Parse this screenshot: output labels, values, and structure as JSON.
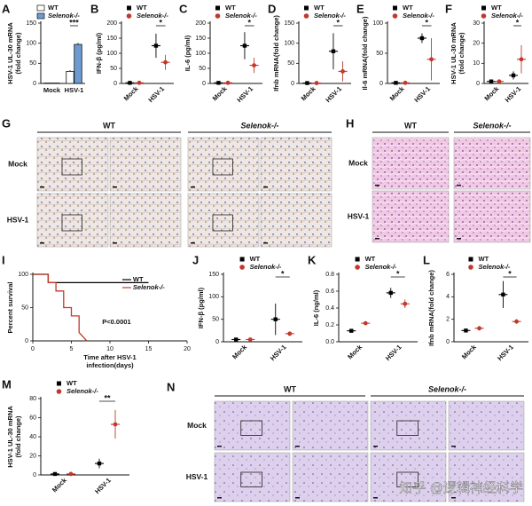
{
  "chart_data": [
    {
      "label": "A",
      "type": "bar",
      "ylabel": [
        "HSV-1 UL-30 mRNA",
        "(fold change)"
      ],
      "categories": [
        "Mock",
        "HSV-1"
      ],
      "series": [
        {
          "name": "WT",
          "color": "#ffffff",
          "values": [
            1,
            30
          ],
          "errors": [
            0.5,
            3
          ]
        },
        {
          "name": "Selenok-/-",
          "color": "#6d9bd1",
          "values": [
            1,
            97
          ],
          "errors": [
            0.5,
            4
          ]
        }
      ],
      "ylim": [
        0,
        150
      ],
      "yticks": [
        0,
        50,
        100,
        150
      ],
      "significance": "***"
    },
    {
      "label": "B",
      "type": "dot",
      "ylabel": [
        "IFN-β (pg/ml)"
      ],
      "categories": [
        "Mock",
        "HSV-1"
      ],
      "series": [
        {
          "name": "WT",
          "color": "#000000",
          "values": [
            2,
            125
          ],
          "errors": [
            1,
            40
          ]
        },
        {
          "name": "Selenok-/-",
          "color": "#c0392b",
          "values": [
            2,
            70
          ],
          "errors": [
            1,
            25
          ]
        }
      ],
      "ylim": [
        0,
        200
      ],
      "yticks": [
        0,
        50,
        100,
        150,
        200
      ],
      "significance": "*"
    },
    {
      "label": "C",
      "type": "dot",
      "ylabel": [
        "IL-6 (pg/ml)"
      ],
      "categories": [
        "Mock",
        "HSV-1"
      ],
      "series": [
        {
          "name": "WT",
          "color": "#000000",
          "values": [
            2,
            125
          ],
          "errors": [
            1,
            45
          ]
        },
        {
          "name": "Selenok-/-",
          "color": "#c0392b",
          "values": [
            2,
            60
          ],
          "errors": [
            1,
            25
          ]
        }
      ],
      "ylim": [
        0,
        200
      ],
      "yticks": [
        0,
        50,
        100,
        150,
        200
      ],
      "significance": "*"
    },
    {
      "label": "D",
      "type": "dot",
      "ylabel": [
        "Ifnb mRNA(fold change)"
      ],
      "categories": [
        "Mock",
        "HSV-1"
      ],
      "series": [
        {
          "name": "WT",
          "color": "#000000",
          "values": [
            1,
            80
          ],
          "errors": [
            1,
            45
          ]
        },
        {
          "name": "Selenok-/-",
          "color": "#c0392b",
          "values": [
            1,
            30
          ],
          "errors": [
            1,
            25
          ]
        }
      ],
      "ylim": [
        0,
        150
      ],
      "yticks": [
        0,
        50,
        100,
        150
      ],
      "significance": "*"
    },
    {
      "label": "E",
      "type": "dot",
      "ylabel": [
        "Il-6 mRNA(fold change)"
      ],
      "categories": [
        "Mock",
        "HSV-1"
      ],
      "series": [
        {
          "name": "WT",
          "color": "#000000",
          "values": [
            1,
            75
          ],
          "errors": [
            1,
            8
          ]
        },
        {
          "name": "Selenok-/-",
          "color": "#c0392b",
          "values": [
            1,
            40
          ],
          "errors": [
            1,
            35
          ]
        }
      ],
      "ylim": [
        0,
        100
      ],
      "yticks": [
        0,
        50,
        100
      ],
      "significance": "*"
    },
    {
      "label": "F",
      "type": "dot",
      "ylabel": [
        "HSV-1 UL-30 mRNA",
        "(fold change)"
      ],
      "categories": [
        "Mock",
        "HSV-1"
      ],
      "series": [
        {
          "name": "WT",
          "color": "#000000",
          "values": [
            1,
            4
          ],
          "errors": [
            0.5,
            2
          ]
        },
        {
          "name": "Selenok-/-",
          "color": "#c0392b",
          "values": [
            1,
            12
          ],
          "errors": [
            0.5,
            7
          ]
        }
      ],
      "ylim": [
        0,
        30
      ],
      "yticks": [
        0,
        10,
        20,
        30
      ],
      "significance": "*"
    },
    {
      "label": "I",
      "type": "line",
      "ylabel": [
        "Percent survival"
      ],
      "xlabel": [
        "Time after HSV-1",
        "infection(days)"
      ],
      "series": [
        {
          "name": "WT",
          "color": "#000000",
          "x": [
            0,
            2,
            2,
            15
          ],
          "values": [
            100,
            100,
            87.5,
            87.5
          ]
        },
        {
          "name": "Selenok-/-",
          "color": "#c0392b",
          "x": [
            0,
            2,
            2,
            3,
            3,
            4,
            4,
            5,
            5,
            6,
            6,
            7
          ],
          "values": [
            100,
            100,
            87.5,
            87.5,
            75,
            75,
            50,
            50,
            37.5,
            37.5,
            12.5,
            0
          ]
        }
      ],
      "xlim": [
        0,
        20
      ],
      "xticks": [
        0,
        5,
        10,
        15,
        20
      ],
      "ylim": [
        0,
        100
      ],
      "yticks": [
        0,
        50,
        100
      ],
      "annotation": "P<0.0001"
    },
    {
      "label": "J",
      "type": "dot",
      "ylabel": [
        "IFN-β (pg/ml)"
      ],
      "categories": [
        "Mock",
        "HSV-1"
      ],
      "series": [
        {
          "name": "WT",
          "color": "#000000",
          "values": [
            5,
            50
          ],
          "errors": [
            1,
            35
          ]
        },
        {
          "name": "Selenok-/-",
          "color": "#c0392b",
          "values": [
            5,
            18
          ],
          "errors": [
            1,
            5
          ]
        }
      ],
      "ylim": [
        0,
        150
      ],
      "yticks": [
        0,
        50,
        100,
        150
      ],
      "significance": "*"
    },
    {
      "label": "K",
      "type": "dot",
      "ylabel": [
        "IL-6 (ng/ml)"
      ],
      "categories": [
        "Mock",
        "HSV-1"
      ],
      "series": [
        {
          "name": "WT",
          "color": "#000000",
          "values": [
            0.13,
            0.58
          ],
          "errors": [
            0.01,
            0.06
          ]
        },
        {
          "name": "Selenok-/-",
          "color": "#c0392b",
          "values": [
            0.22,
            0.45
          ],
          "errors": [
            0.01,
            0.05
          ]
        }
      ],
      "ylim": [
        0,
        0.8
      ],
      "yticks": [
        {
          "value": 0,
          "label": "0.0"
        },
        0.2,
        0.4,
        0.6,
        0.8
      ],
      "significance": "*"
    },
    {
      "label": "L",
      "type": "dot",
      "ylabel": [
        "Ifnb mRNA(fold change)"
      ],
      "categories": [
        "Mock",
        "HSV-1"
      ],
      "series": [
        {
          "name": "WT",
          "color": "#000000",
          "values": [
            1,
            4.2
          ],
          "errors": [
            0.1,
            1.2
          ]
        },
        {
          "name": "Selenok-/-",
          "color": "#c0392b",
          "values": [
            1.2,
            1.8
          ],
          "errors": [
            0.2,
            0.2
          ]
        }
      ],
      "ylim": [
        0,
        6
      ],
      "yticks": [
        0,
        2,
        4,
        6
      ],
      "significance": "*"
    },
    {
      "label": "M",
      "type": "dot",
      "ylabel": [
        "HSV-1 UL-30 mRNA",
        "(fold change)"
      ],
      "categories": [
        "Mock",
        "HSV-1"
      ],
      "series": [
        {
          "name": "WT",
          "color": "#000000",
          "values": [
            1,
            12
          ],
          "errors": [
            0.5,
            5
          ]
        },
        {
          "name": "Selenok-/-",
          "color": "#c0392b",
          "values": [
            1,
            53
          ],
          "errors": [
            0.5,
            15
          ]
        }
      ],
      "ylim": [
        0,
        80
      ],
      "yticks": [
        0,
        20,
        40,
        60,
        80
      ],
      "significance": "**"
    }
  ],
  "image_panels": [
    {
      "label": "G",
      "columns": [
        "WT",
        "Selenok-/-"
      ],
      "rows": [
        "Mock",
        "HSV-1"
      ]
    },
    {
      "label": "H",
      "columns": [
        "WT",
        "Selenok-/-"
      ],
      "rows": [
        "Mock",
        "HSV-1"
      ]
    },
    {
      "label": "N",
      "columns": [
        "WT",
        "Selenok-/-"
      ],
      "rows": [
        "Mock",
        "HSV-1"
      ]
    }
  ],
  "watermark": "知乎 @逻辑神经科学"
}
